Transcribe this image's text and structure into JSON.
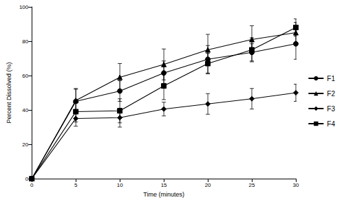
{
  "chart_data": {
    "type": "line",
    "x_label": "Time (minutes)",
    "y_label": "Percent Dissolved (%)",
    "xlim": [
      0,
      30
    ],
    "xticks": [
      0,
      5,
      10,
      15,
      20,
      25,
      30
    ],
    "ylim": [
      0,
      100
    ],
    "yticks": [
      0,
      20,
      40,
      60,
      80,
      100
    ],
    "grid": false,
    "legend": "right",
    "x": [
      0,
      5,
      10,
      15,
      20,
      25,
      30
    ],
    "series": [
      {
        "name": "F1",
        "color": "#000000",
        "marker": "circle",
        "line_style": "solid",
        "values": [
          0,
          45,
          51,
          61.5,
          69.5,
          73.5,
          78.5
        ],
        "errors": [
          0,
          7,
          6,
          7,
          8,
          5,
          9
        ]
      },
      {
        "name": "F2",
        "color": "#000000",
        "marker": "triangle",
        "line_style": "solid",
        "values": [
          0,
          45.5,
          59,
          66.5,
          75,
          81,
          85
        ],
        "errors": [
          0,
          7,
          8,
          9,
          9,
          8,
          6
        ]
      },
      {
        "name": "F3",
        "color": "#000000",
        "marker": "diamond",
        "line_style": "solid",
        "values": [
          0,
          35,
          35.5,
          40.5,
          43.5,
          46.5,
          50
        ],
        "errors": [
          0,
          4.5,
          5.5,
          4,
          6,
          6,
          5
        ]
      },
      {
        "name": "F4",
        "color": "#000000",
        "marker": "square",
        "line_style": "solid",
        "values": [
          0,
          39,
          39.5,
          54,
          67,
          75,
          88
        ],
        "errors": [
          0,
          6,
          7,
          8,
          6,
          7,
          5
        ]
      }
    ]
  }
}
